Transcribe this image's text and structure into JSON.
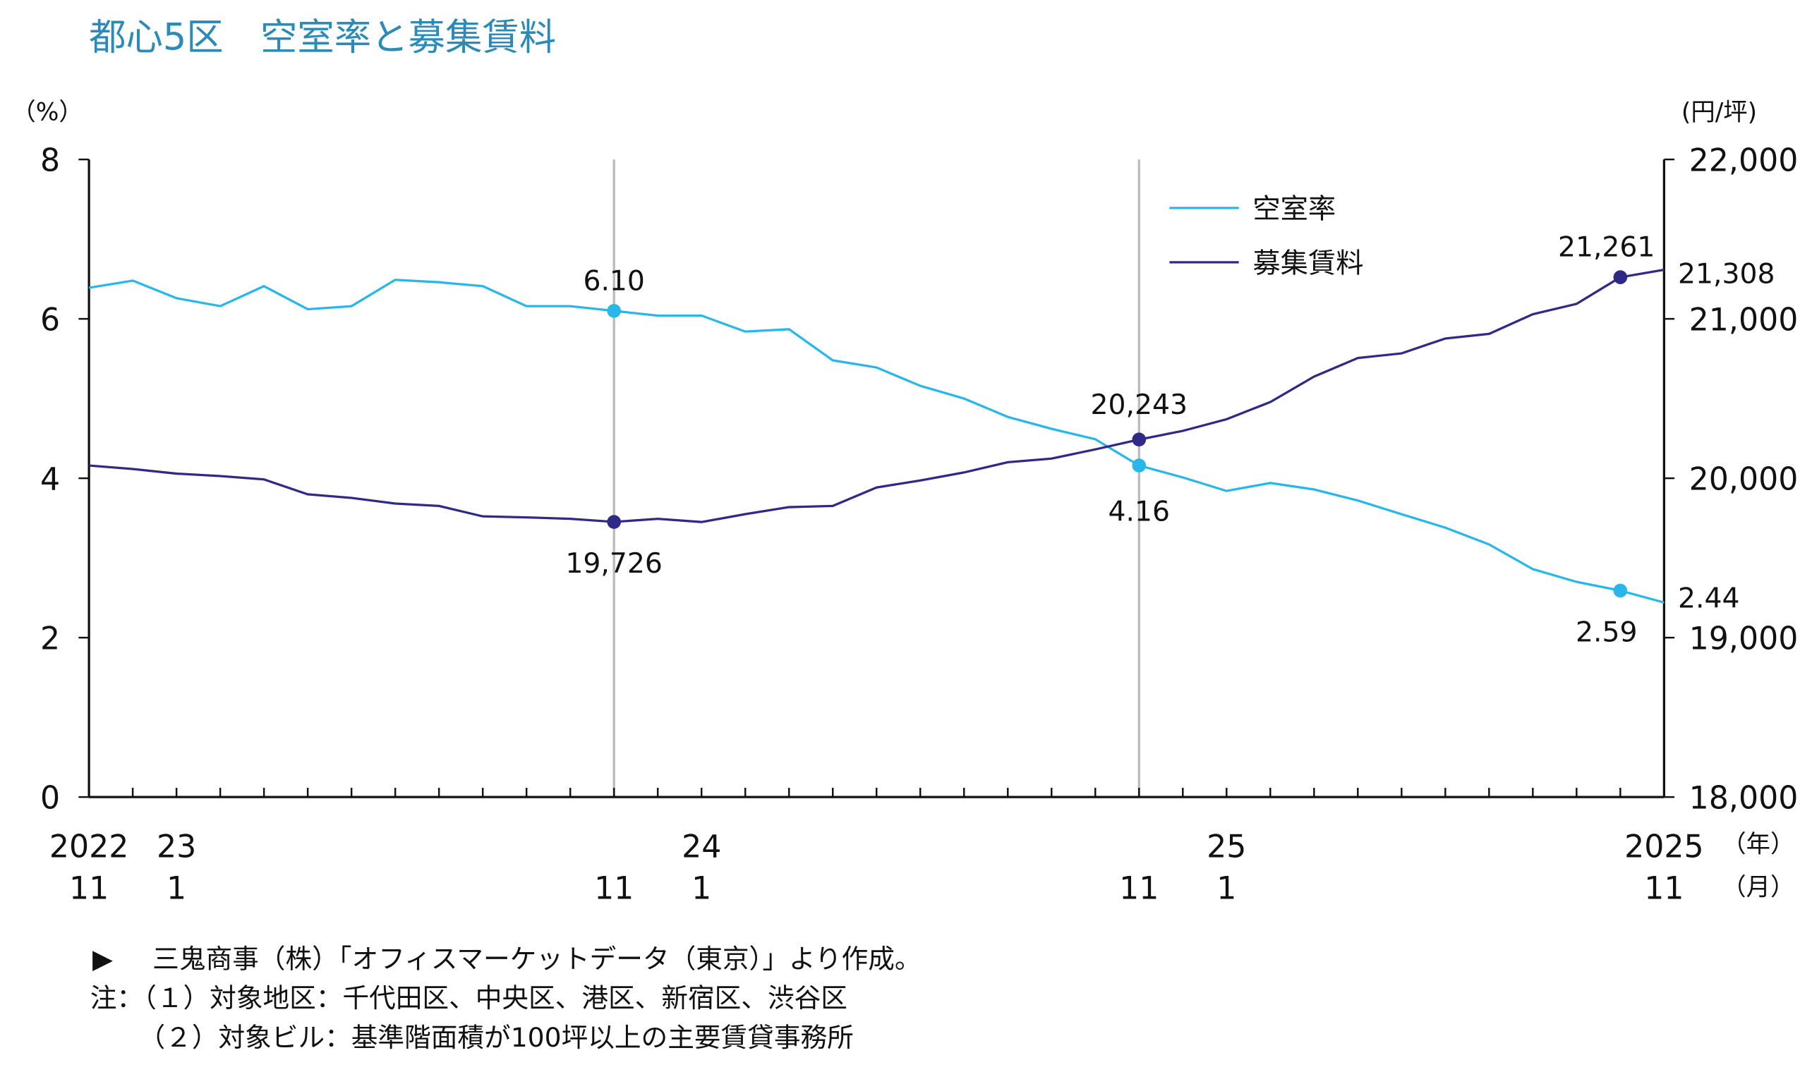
{
  "title": "都心5区　空室率と募集賃料",
  "colors": {
    "title": "#2a8ab8",
    "vacancy": "#29b6ea",
    "rent": "#2e2a86",
    "gridline": "#bbbbbb"
  },
  "chart_data": {
    "type": "line",
    "x": [
      "2022-11",
      "2022-12",
      "2023-01",
      "2023-02",
      "2023-03",
      "2023-04",
      "2023-05",
      "2023-06",
      "2023-07",
      "2023-08",
      "2023-09",
      "2023-10",
      "2023-11",
      "2023-12",
      "2024-01",
      "2024-02",
      "2024-03",
      "2024-04",
      "2024-05",
      "2024-06",
      "2024-07",
      "2024-08",
      "2024-09",
      "2024-10",
      "2024-11",
      "2024-12",
      "2025-01",
      "2025-02",
      "2025-03",
      "2025-04",
      "2025-05",
      "2025-06",
      "2025-07",
      "2025-08",
      "2025-09",
      "2025-10",
      "2025-11"
    ],
    "series": [
      {
        "name": "空室率",
        "axis": "left",
        "color": "#29b6ea",
        "values": [
          6.39,
          6.48,
          6.26,
          6.16,
          6.41,
          6.12,
          6.16,
          6.49,
          6.46,
          6.41,
          6.16,
          6.16,
          6.1,
          6.04,
          6.04,
          5.84,
          5.87,
          5.48,
          5.39,
          5.16,
          5.0,
          4.77,
          4.62,
          4.49,
          4.16,
          4.01,
          3.84,
          3.94,
          3.86,
          3.72,
          3.55,
          3.38,
          3.17,
          2.86,
          2.7,
          2.59,
          2.44
        ]
      },
      {
        "name": "募集賃料",
        "axis": "right",
        "color": "#2e2a86",
        "values": [
          20080,
          20058,
          20029,
          20014,
          19993,
          19899,
          19877,
          19841,
          19826,
          19761,
          19754,
          19746,
          19726,
          19746,
          19725,
          19775,
          19819,
          19826,
          19942,
          19986,
          20036,
          20101,
          20123,
          20181,
          20243,
          20297,
          20370,
          20478,
          20638,
          20754,
          20783,
          20877,
          20906,
          21029,
          21094,
          21261,
          21308
        ]
      }
    ],
    "highlighted_months": [
      "2023-11",
      "2024-11"
    ],
    "markers": [
      {
        "series": 0,
        "index": 12,
        "label": "6.10"
      },
      {
        "series": 1,
        "index": 12,
        "label": "19,726"
      },
      {
        "series": 1,
        "index": 24,
        "label": "20,243"
      },
      {
        "series": 0,
        "index": 24,
        "label": "4.16"
      },
      {
        "series": 1,
        "index": 35,
        "label": "21,261"
      },
      {
        "series": 0,
        "index": 35,
        "label": "2.59"
      }
    ],
    "end_labels": {
      "vacancy": "2.44",
      "rent": "21,308"
    },
    "left_axis": {
      "unit": "（%）",
      "range": [
        0,
        8
      ],
      "ticks": [
        "0",
        "2",
        "4",
        "6",
        "8"
      ]
    },
    "right_axis": {
      "unit": "(円/坪)",
      "range": [
        18000,
        22000
      ],
      "ticks": [
        "18,000",
        "19,000",
        "20,000",
        "21,000",
        "22,000"
      ]
    },
    "x_axis": {
      "year_unit": "（年）",
      "month_unit": "（月）",
      "year_labels": [
        {
          "i": 0,
          "t": "2022"
        },
        {
          "i": 2,
          "t": "23"
        },
        {
          "i": 14,
          "t": "24"
        },
        {
          "i": 26,
          "t": "25"
        },
        {
          "i": 36,
          "t": "2025"
        }
      ],
      "month_labels": [
        {
          "i": 0,
          "t": "11"
        },
        {
          "i": 2,
          "t": "1"
        },
        {
          "i": 12,
          "t": "11"
        },
        {
          "i": 14,
          "t": "1"
        },
        {
          "i": 24,
          "t": "11"
        },
        {
          "i": 26,
          "t": "1"
        },
        {
          "i": 36,
          "t": "11"
        }
      ]
    },
    "legend": {
      "placement": "top-right-inside",
      "entries": [
        "空室率",
        "募集賃料"
      ]
    },
    "grid": false
  },
  "notes": {
    "source_marker": "▶",
    "source": "三鬼商事（株）「オフィスマーケットデータ（東京）」より作成。",
    "note1": "注：（１）対象地区：千代田区、中央区、港区、新宿区、渋谷区",
    "note2": "（２）対象ビル：基準階面積が100坪以上の主要賃貸事務所"
  }
}
